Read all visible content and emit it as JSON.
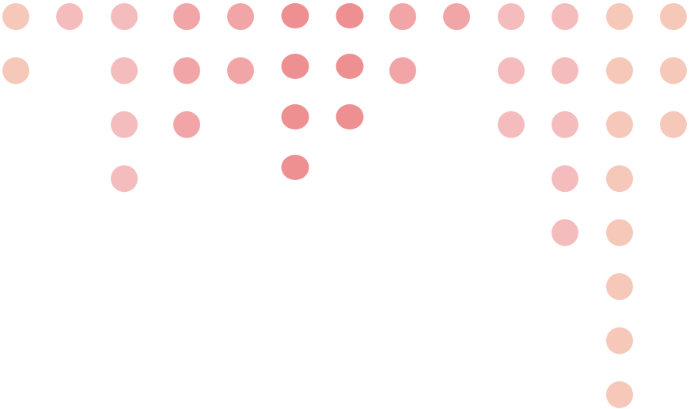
{
  "palette": {
    "peach": "#f5c8b9",
    "light_pink": "#f5bcbe",
    "pink": "#f2a5a7",
    "dark_pink": "#ee9091"
  },
  "columns": [
    {
      "count": 2,
      "color": "peach"
    },
    {
      "count": 1,
      "color": "light_pink"
    },
    {
      "count": 4,
      "color": "light_pink"
    },
    {
      "count": 3,
      "color": "pink"
    },
    {
      "count": 2,
      "color": "pink"
    },
    {
      "count": 4,
      "color": "dark_pink",
      "shape": "ellipse"
    },
    {
      "count": 3,
      "color": "dark_pink",
      "shape": "ellipse"
    },
    {
      "count": 2,
      "color": "pink"
    },
    {
      "count": 1,
      "color": "pink"
    },
    {
      "count": 3,
      "color": "light_pink"
    },
    {
      "count": 5,
      "color": "light_pink"
    },
    {
      "count": 8,
      "color": "peach"
    },
    {
      "count": 3,
      "color": "peach"
    }
  ]
}
